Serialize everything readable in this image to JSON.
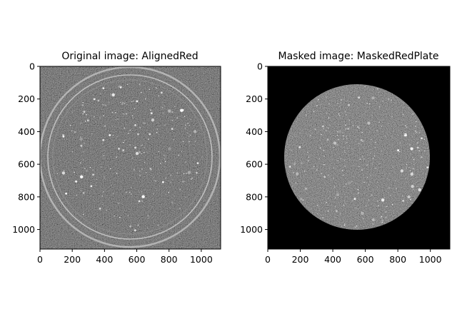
{
  "figure": {
    "panels": [
      {
        "title": "Original image: AlignedRed",
        "x_ticks": [
          "0",
          "200",
          "400",
          "600",
          "800",
          "1000"
        ],
        "y_ticks": [
          "0",
          "200",
          "400",
          "600",
          "800",
          "1000"
        ]
      },
      {
        "title": "Masked image: MaskedRedPlate",
        "x_ticks": [
          "0",
          "200",
          "400",
          "600",
          "800",
          "1000"
        ],
        "y_ticks": [
          "0",
          "200",
          "400",
          "600",
          "800",
          "1000"
        ]
      }
    ],
    "colors": {
      "background": "#ffffff",
      "image_dark": "#121212",
      "mask": "#000000",
      "rim": "#c8c8c8"
    }
  }
}
